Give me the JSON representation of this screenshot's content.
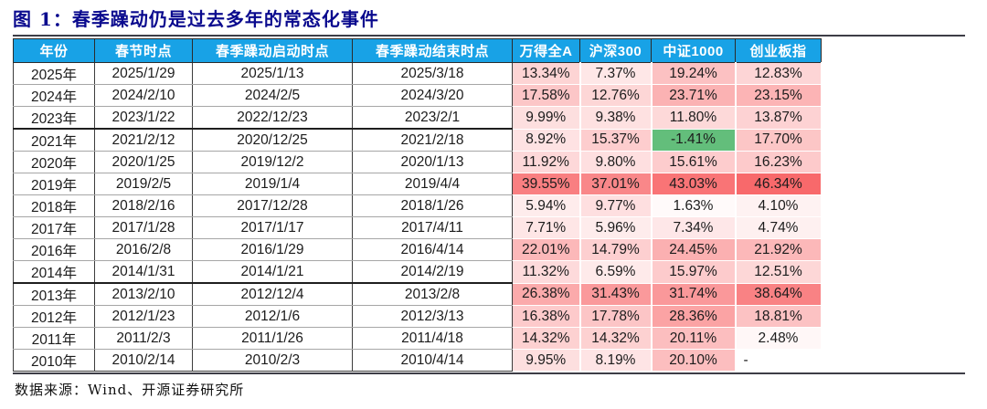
{
  "title": "图 1：春季躁动仍是过去多年的常态化事件",
  "footer": {
    "source": "数据来源：Wind、开源证券研究所"
  },
  "colors": {
    "title": "#0a0a8e",
    "divider": "#3d3d46",
    "header_bg": "#18A2E6",
    "header_text": "#FFFFFF"
  },
  "chart_data": {
    "type": "table",
    "title": "春季躁动仍是过去多年的常态化事件",
    "columns": [
      "年份",
      "春节时点",
      "春季躁动启动时点",
      "春季躁动结束时点",
      "万得全A",
      "沪深300",
      "中证1000",
      "创业板指"
    ],
    "return_columns": [
      "万得全A",
      "沪深300",
      "中证1000",
      "创业板指"
    ],
    "unit": "percent",
    "null_display": "-",
    "heatmap": {
      "min_color": "#FFFFFF",
      "max_color": "#F8696B",
      "negative_color": "#63BE7B",
      "max_value": 46.34
    },
    "rows": [
      {
        "year": "2025年",
        "festival": "2025/1/29",
        "start": "2025/1/13",
        "end": "2025/3/18",
        "returns": [
          13.34,
          7.37,
          19.24,
          12.83
        ],
        "gap_above": false
      },
      {
        "year": "2024年",
        "festival": "2024/2/10",
        "start": "2024/2/5",
        "end": "2024/3/20",
        "returns": [
          17.58,
          12.76,
          23.71,
          23.15
        ],
        "gap_above": false
      },
      {
        "year": "2023年",
        "festival": "2023/1/22",
        "start": "2022/12/23",
        "end": "2023/2/1",
        "returns": [
          9.99,
          9.38,
          11.8,
          13.87
        ],
        "gap_above": false
      },
      {
        "year": "2021年",
        "festival": "2021/2/12",
        "start": "2020/12/25",
        "end": "2021/2/18",
        "returns": [
          8.92,
          15.37,
          -1.41,
          17.7
        ],
        "gap_above": true
      },
      {
        "year": "2020年",
        "festival": "2020/1/25",
        "start": "2019/12/2",
        "end": "2020/1/13",
        "returns": [
          11.92,
          9.8,
          15.61,
          16.23
        ],
        "gap_above": false
      },
      {
        "year": "2019年",
        "festival": "2019/2/5",
        "start": "2019/1/4",
        "end": "2019/4/4",
        "returns": [
          39.55,
          37.01,
          43.03,
          46.34
        ],
        "gap_above": false
      },
      {
        "year": "2018年",
        "festival": "2018/2/16",
        "start": "2017/12/28",
        "end": "2018/1/26",
        "returns": [
          5.94,
          9.77,
          1.63,
          4.1
        ],
        "gap_above": false
      },
      {
        "year": "2017年",
        "festival": "2017/1/28",
        "start": "2017/1/17",
        "end": "2017/4/11",
        "returns": [
          7.71,
          5.96,
          7.34,
          4.74
        ],
        "gap_above": false
      },
      {
        "year": "2016年",
        "festival": "2016/2/8",
        "start": "2016/1/29",
        "end": "2016/4/14",
        "returns": [
          22.01,
          14.79,
          24.45,
          21.92
        ],
        "gap_above": false
      },
      {
        "year": "2014年",
        "festival": "2014/1/31",
        "start": "2014/1/21",
        "end": "2014/2/19",
        "returns": [
          11.32,
          6.59,
          15.97,
          12.51
        ],
        "gap_above": false
      },
      {
        "year": "2013年",
        "festival": "2013/2/10",
        "start": "2012/12/4",
        "end": "2013/2/8",
        "returns": [
          26.38,
          31.43,
          31.74,
          38.64
        ],
        "gap_above": true
      },
      {
        "year": "2012年",
        "festival": "2012/1/23",
        "start": "2012/1/6",
        "end": "2012/3/13",
        "returns": [
          16.38,
          17.78,
          28.36,
          18.81
        ],
        "gap_above": false
      },
      {
        "year": "2011年",
        "festival": "2011/2/3",
        "start": "2011/1/26",
        "end": "2011/4/18",
        "returns": [
          14.32,
          14.32,
          20.11,
          2.48
        ],
        "gap_above": false
      },
      {
        "year": "2010年",
        "festival": "2010/2/14",
        "start": "2010/2/3",
        "end": "2010/4/14",
        "returns": [
          9.95,
          8.19,
          20.1,
          null
        ],
        "gap_above": false
      }
    ]
  }
}
